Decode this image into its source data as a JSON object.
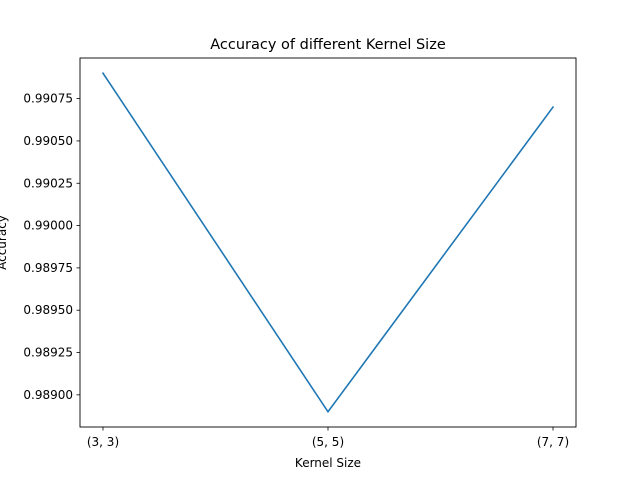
{
  "chart_data": {
    "type": "line",
    "title": "Accuracy of different Kernel Size",
    "xlabel": "Kernel Size",
    "ylabel": "Accuracy",
    "categories": [
      "(3, 3)",
      "(5, 5)",
      "(7, 7)"
    ],
    "series": [
      {
        "values": [
          0.9909,
          0.9889,
          0.9907
        ]
      }
    ],
    "ylim": [
      0.98881,
      0.99099
    ],
    "yticks": [
      0.989,
      0.98925,
      0.9895,
      0.98975,
      0.99,
      0.99025,
      0.9905,
      0.99075
    ],
    "ytick_labels": [
      "0.98900",
      "0.98925",
      "0.98950",
      "0.98975",
      "0.99000",
      "0.99025",
      "0.99050",
      "0.99075"
    ],
    "grid": false,
    "legend": "none",
    "colors": {
      "line": "#1f77b4",
      "axes": "#000000",
      "background": "#ffffff"
    }
  }
}
